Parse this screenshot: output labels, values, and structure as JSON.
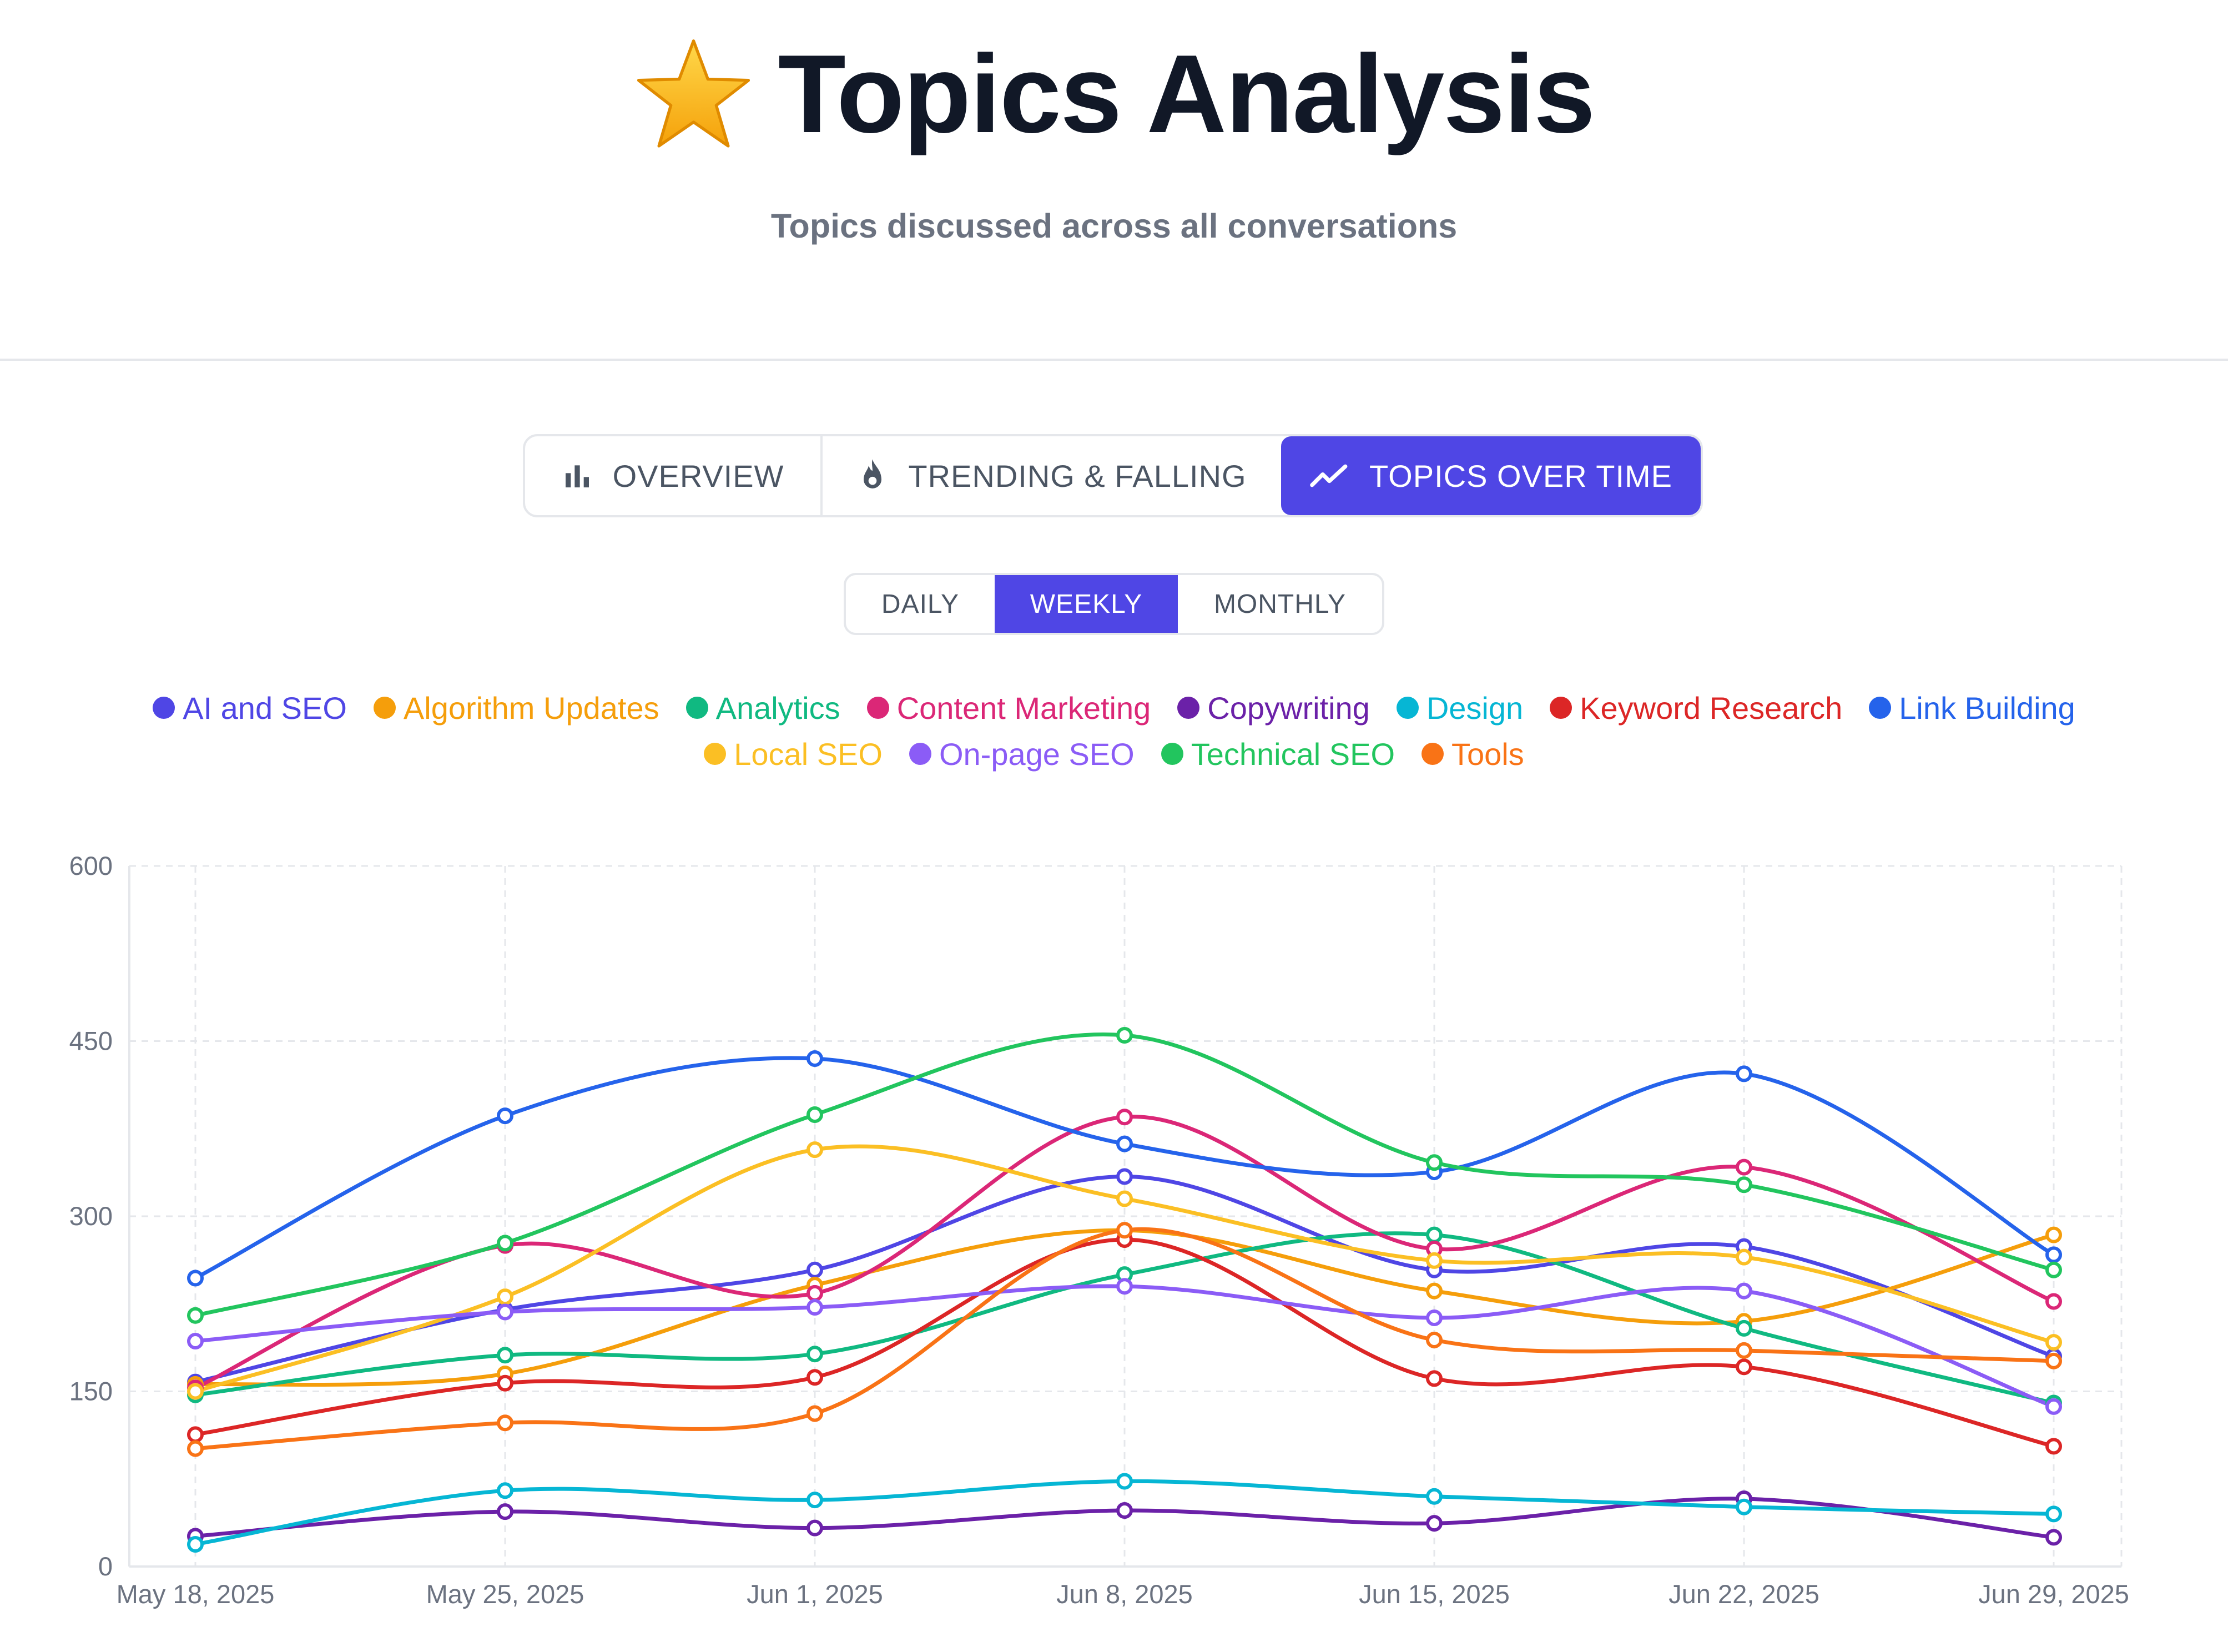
{
  "header": {
    "title": "Topics Analysis",
    "subtitle": "Topics discussed across all conversations",
    "icon": "star-icon"
  },
  "main_tabs": [
    {
      "label": "OVERVIEW",
      "icon": "bar-chart-icon",
      "active": false
    },
    {
      "label": "TRENDING & FALLING",
      "icon": "flame-icon",
      "active": false
    },
    {
      "label": "TOPICS OVER TIME",
      "icon": "trend-line-icon",
      "active": true
    }
  ],
  "period_tabs": [
    {
      "label": "DAILY",
      "active": false
    },
    {
      "label": "WEEKLY",
      "active": true
    },
    {
      "label": "MONTHLY",
      "active": false
    }
  ],
  "colors": {
    "accent": "#4f46e5",
    "grid": "#e5e7eb",
    "muted_text": "#6b7280"
  },
  "chart_data": {
    "type": "line",
    "title": "",
    "xlabel": "",
    "ylabel": "",
    "categories": [
      "May 18, 2025",
      "May 25, 2025",
      "Jun 1, 2025",
      "Jun 8, 2025",
      "Jun 15, 2025",
      "Jun 22, 2025",
      "Jun 29, 2025"
    ],
    "ylim": [
      0,
      600
    ],
    "yticks": [
      0,
      150,
      300,
      450,
      600
    ],
    "grid": true,
    "legend_position": "top",
    "series": [
      {
        "name": "AI and SEO",
        "color": "#4f46e5",
        "values": [
          158,
          220,
          254,
          334,
          254,
          274,
          180
        ]
      },
      {
        "name": "Algorithm Updates",
        "color": "#f59e0b",
        "values": [
          156,
          165,
          241,
          288,
          236,
          210,
          284
        ]
      },
      {
        "name": "Analytics",
        "color": "#10b981",
        "values": [
          147,
          181,
          182,
          250,
          284,
          204,
          140
        ]
      },
      {
        "name": "Content Marketing",
        "color": "#db2777",
        "values": [
          153,
          275,
          234,
          385,
          272,
          342,
          227
        ]
      },
      {
        "name": "Copywriting",
        "color": "#6b21a8",
        "values": [
          26,
          47,
          33,
          48,
          37,
          58,
          25
        ]
      },
      {
        "name": "Design",
        "color": "#06b6d4",
        "values": [
          19,
          65,
          57,
          73,
          60,
          51,
          45
        ]
      },
      {
        "name": "Keyword Research",
        "color": "#dc2626",
        "values": [
          113,
          157,
          162,
          280,
          161,
          171,
          103
        ]
      },
      {
        "name": "Link Building",
        "color": "#2563eb",
        "values": [
          247,
          386,
          435,
          362,
          338,
          422,
          267
        ]
      },
      {
        "name": "Local SEO",
        "color": "#fbbf24",
        "values": [
          150,
          231,
          357,
          315,
          262,
          265,
          192
        ]
      },
      {
        "name": "On-page SEO",
        "color": "#8b5cf6",
        "values": [
          193,
          218,
          222,
          240,
          213,
          236,
          137
        ]
      },
      {
        "name": "Technical SEO",
        "color": "#22c55e",
        "values": [
          215,
          277,
          387,
          455,
          346,
          327,
          254
        ]
      },
      {
        "name": "Tools",
        "color": "#f97316",
        "values": [
          101,
          123,
          131,
          288,
          194,
          185,
          176
        ]
      }
    ]
  }
}
